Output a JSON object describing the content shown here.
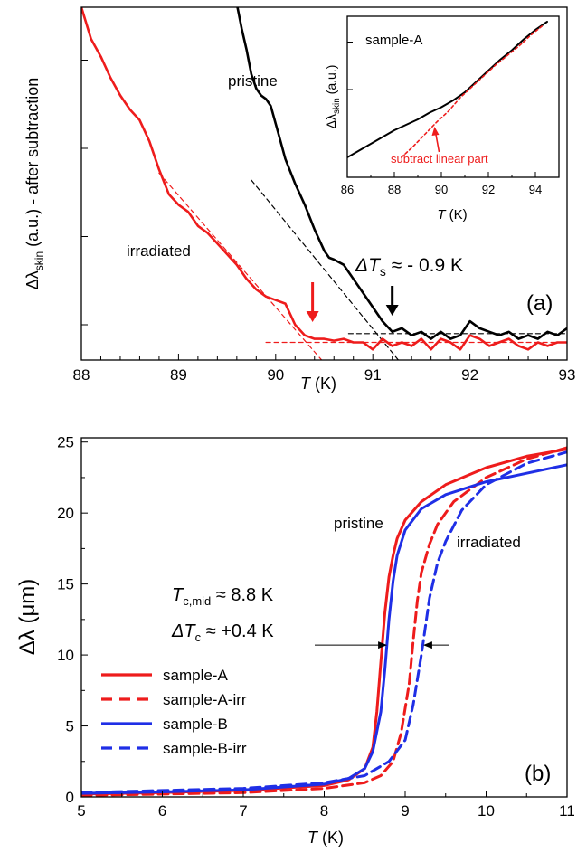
{
  "colors": {
    "red": "#ee1c1c",
    "black": "#000000",
    "blue": "#1f2fe6"
  },
  "chart_data": [
    {
      "type": "line",
      "panel_label": "(a)",
      "xlabel_italic": "T",
      "xlabel_unit": " (K)",
      "ylabel_main": "Δλ",
      "ylabel_sub": "skin",
      "ylabel_rest": " (a.u.) - after subtraction",
      "xlim": [
        88,
        93
      ],
      "ylim": [
        0,
        1
      ],
      "xticks": [
        "88",
        "89",
        "90",
        "91",
        "92",
        "93"
      ],
      "y_tick_labels_shown": false,
      "annotations": {
        "pristine": "pristine",
        "irradiated": "irradiated",
        "dT_sym": "ΔT",
        "dT_sub": "s",
        "dT_rest": " ≈ - 0.9 K"
      },
      "arrow_markers": [
        {
          "series": "irradiated",
          "x": 90.38,
          "color": "red"
        },
        {
          "series": "pristine",
          "x": 91.2,
          "color": "black"
        }
      ],
      "series": [
        {
          "name": "pristine",
          "color": "black",
          "x": [
            89.6,
            89.65,
            89.7,
            89.75,
            89.8,
            89.85,
            89.9,
            89.95,
            90.0,
            90.05,
            90.1,
            90.2,
            90.3,
            90.4,
            90.5,
            90.55,
            90.6,
            90.7,
            90.8,
            90.9,
            91.0,
            91.1,
            91.2,
            91.3,
            91.4,
            91.5,
            91.6,
            91.7,
            91.8,
            91.9,
            92.0,
            92.1,
            92.2,
            92.3,
            92.4,
            92.5,
            92.6,
            92.7,
            92.8,
            92.9,
            93.0
          ],
          "y": [
            1.01,
            0.94,
            0.88,
            0.81,
            0.77,
            0.75,
            0.74,
            0.72,
            0.67,
            0.62,
            0.57,
            0.5,
            0.44,
            0.37,
            0.31,
            0.29,
            0.285,
            0.27,
            0.23,
            0.19,
            0.15,
            0.11,
            0.08,
            0.09,
            0.07,
            0.08,
            0.06,
            0.08,
            0.06,
            0.07,
            0.11,
            0.09,
            0.08,
            0.07,
            0.08,
            0.06,
            0.07,
            0.06,
            0.08,
            0.07,
            0.09
          ]
        },
        {
          "name": "irradiated",
          "color": "red",
          "x": [
            88.0,
            88.1,
            88.2,
            88.3,
            88.4,
            88.5,
            88.6,
            88.7,
            88.8,
            88.9,
            89.0,
            89.1,
            89.2,
            89.3,
            89.4,
            89.5,
            89.6,
            89.7,
            89.8,
            89.9,
            90.0,
            90.1,
            90.2,
            90.3,
            90.4,
            90.5,
            90.6,
            90.7,
            90.8,
            90.9,
            91.0,
            91.1,
            91.2,
            91.3,
            91.4,
            91.5,
            91.6,
            91.7,
            91.8,
            91.9,
            92.0,
            92.1,
            92.2,
            92.3,
            92.4,
            92.5,
            92.6,
            92.7,
            92.8,
            92.9,
            93.0
          ],
          "y": [
            1.0,
            0.91,
            0.86,
            0.8,
            0.75,
            0.71,
            0.68,
            0.62,
            0.54,
            0.47,
            0.44,
            0.42,
            0.38,
            0.36,
            0.33,
            0.3,
            0.27,
            0.23,
            0.2,
            0.18,
            0.17,
            0.16,
            0.1,
            0.07,
            0.06,
            0.06,
            0.055,
            0.06,
            0.05,
            0.05,
            0.03,
            0.06,
            0.04,
            0.05,
            0.04,
            0.06,
            0.03,
            0.06,
            0.05,
            0.03,
            0.07,
            0.06,
            0.04,
            0.05,
            0.06,
            0.04,
            0.03,
            0.05,
            0.04,
            0.05,
            0.05
          ]
        }
      ],
      "guide_lines": [
        {
          "color": "black",
          "style": "dashed",
          "x": [
            89.75,
            91.5
          ],
          "y": [
            0.51,
            -0.08
          ]
        },
        {
          "color": "black",
          "style": "dashed",
          "x": [
            90.75,
            93.0
          ],
          "y": [
            0.075,
            0.075
          ]
        },
        {
          "color": "red",
          "style": "dashed",
          "x": [
            88.8,
            90.6
          ],
          "y": [
            0.53,
            -0.04
          ]
        },
        {
          "color": "red",
          "style": "dashed",
          "x": [
            89.9,
            93.0
          ],
          "y": [
            0.05,
            0.05
          ]
        }
      ],
      "inset": {
        "type": "line",
        "title": "sample-A",
        "xlabel_italic": "T",
        "xlabel_unit": " (K)",
        "ylabel_main": "Δλ",
        "ylabel_sub": "skin",
        "ylabel_rest": " (a.u.)",
        "xlim": [
          86,
          95
        ],
        "ylim": [
          0,
          1
        ],
        "xticks": [
          "86",
          "88",
          "90",
          "92",
          "94"
        ],
        "annotation": "subtract linear part",
        "series": [
          {
            "name": "sample-A",
            "color": "black",
            "x": [
              86.0,
              86.5,
              87.0,
              87.5,
              88.0,
              88.5,
              89.0,
              89.5,
              90.0,
              90.5,
              91.0,
              91.5,
              92.0,
              92.5,
              93.0,
              93.5,
              94.0,
              94.5
            ],
            "y": [
              0.0,
              0.05,
              0.1,
              0.15,
              0.2,
              0.24,
              0.28,
              0.33,
              0.37,
              0.42,
              0.48,
              0.56,
              0.64,
              0.72,
              0.79,
              0.87,
              0.94,
              1.0
            ]
          },
          {
            "name": "linear part subtracted",
            "color": "red",
            "style": "dashed",
            "x": [
              88.3,
              88.8,
              89.3,
              89.8,
              90.3,
              90.8,
              91.3,
              91.8,
              92.3,
              92.8,
              93.3,
              93.8,
              94.3
            ],
            "y": [
              0.0,
              0.08,
              0.17,
              0.26,
              0.34,
              0.44,
              0.52,
              0.6,
              0.68,
              0.75,
              0.82,
              0.9,
              0.97
            ]
          }
        ]
      }
    },
    {
      "type": "line",
      "panel_label": "(b)",
      "xlabel_italic": "T",
      "xlabel_unit": " (K)",
      "ylabel": "Δλ (μm)",
      "xlim": [
        5,
        11
      ],
      "ylim": [
        0,
        25.3
      ],
      "xticks": [
        "5",
        "6",
        "7",
        "8",
        "9",
        "10",
        "11"
      ],
      "yticks": [
        "0",
        "5",
        "10",
        "15",
        "20",
        "25"
      ],
      "annotations": {
        "pristine": "pristine",
        "irradiated": "irradiated",
        "tc_sym": "T",
        "tc_sub": "c,mid",
        "tc_rest": " ≈ 8.8 K",
        "dtc_sym": "ΔT",
        "dtc_sub": "c",
        "dtc_rest": " ≈ +0.4 K"
      },
      "legend_position": "lower-left",
      "series": [
        {
          "name": "sample-A",
          "color": "red",
          "style": "solid",
          "x": [
            5.0,
            6.0,
            7.0,
            8.0,
            8.3,
            8.5,
            8.6,
            8.65,
            8.7,
            8.75,
            8.8,
            8.85,
            8.9,
            9.0,
            9.2,
            9.5,
            10.0,
            10.5,
            11.0
          ],
          "y": [
            0.2,
            0.3,
            0.45,
            0.8,
            1.2,
            2.0,
            3.5,
            6.0,
            9.5,
            13.0,
            15.5,
            17.0,
            18.2,
            19.5,
            20.8,
            22.0,
            23.2,
            24.0,
            24.5
          ]
        },
        {
          "name": "sample-A-irr",
          "color": "red",
          "style": "dashed",
          "x": [
            5.0,
            6.0,
            7.0,
            8.0,
            8.5,
            8.7,
            8.85,
            8.95,
            9.05,
            9.1,
            9.15,
            9.2,
            9.3,
            9.4,
            9.6,
            10.0,
            10.5,
            11.0
          ],
          "y": [
            0.1,
            0.2,
            0.3,
            0.6,
            1.0,
            1.5,
            2.5,
            4.5,
            8.0,
            11.0,
            13.8,
            15.8,
            17.8,
            19.2,
            20.8,
            22.5,
            23.8,
            24.6
          ]
        },
        {
          "name": "sample-B",
          "color": "blue",
          "style": "solid",
          "x": [
            5.0,
            6.0,
            7.0,
            8.0,
            8.3,
            8.5,
            8.6,
            8.7,
            8.75,
            8.8,
            8.85,
            8.9,
            9.0,
            9.2,
            9.5,
            10.0,
            10.5,
            11.0
          ],
          "y": [
            0.25,
            0.35,
            0.5,
            0.9,
            1.3,
            2.0,
            3.2,
            6.0,
            9.0,
            12.5,
            15.2,
            17.0,
            18.8,
            20.3,
            21.3,
            22.2,
            22.8,
            23.4
          ]
        },
        {
          "name": "sample-B-irr",
          "color": "blue",
          "style": "dashed",
          "x": [
            5.0,
            6.0,
            7.0,
            8.0,
            8.5,
            8.8,
            9.0,
            9.1,
            9.2,
            9.25,
            9.3,
            9.4,
            9.5,
            9.7,
            10.0,
            10.5,
            11.0
          ],
          "y": [
            0.3,
            0.45,
            0.6,
            1.0,
            1.5,
            2.5,
            4.0,
            6.5,
            10.0,
            12.0,
            14.0,
            16.5,
            18.0,
            20.2,
            22.0,
            23.5,
            24.3
          ]
        }
      ],
      "arrow_markers": [
        {
          "x": 8.8,
          "y": 10.7,
          "direction": "right"
        },
        {
          "x": 9.2,
          "y": 10.7,
          "direction": "left"
        }
      ]
    }
  ]
}
